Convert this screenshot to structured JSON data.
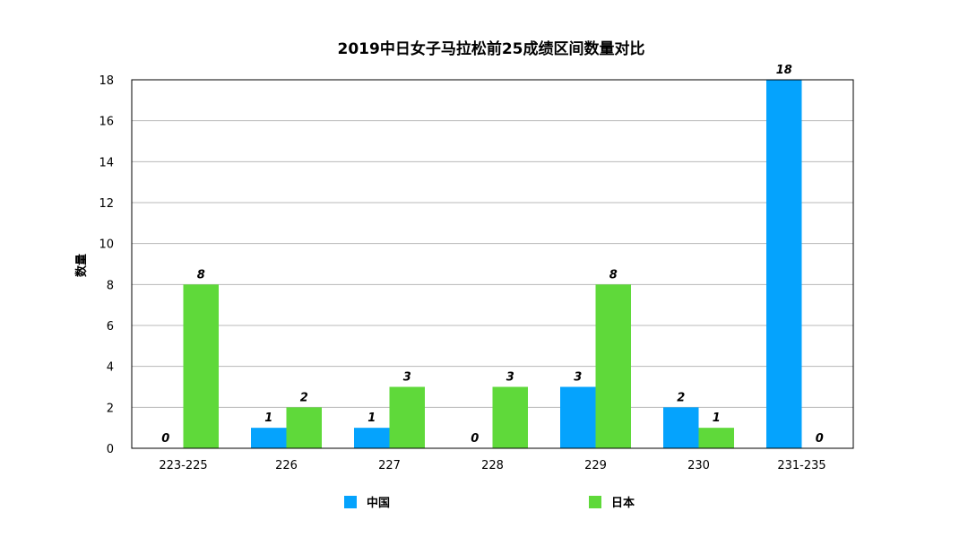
{
  "chart_data": {
    "type": "bar",
    "title": "2019中日女子马拉松前25成绩区间数量对比",
    "xlabel": "",
    "ylabel": "数量",
    "categories": [
      "223-225",
      "226",
      "227",
      "228",
      "229",
      "230",
      "231-235"
    ],
    "series": [
      {
        "name": "中国",
        "color": "#05a3fd",
        "values": [
          0,
          1,
          1,
          0,
          3,
          2,
          18
        ]
      },
      {
        "name": "日本",
        "color": "#5fd93a",
        "values": [
          8,
          2,
          3,
          3,
          8,
          1,
          0
        ]
      }
    ],
    "ylim": [
      0,
      18
    ],
    "yticks": [
      0,
      2,
      4,
      6,
      8,
      10,
      12,
      14,
      16,
      18
    ],
    "grid": true,
    "data_labels": true,
    "legend_position": "bottom"
  }
}
